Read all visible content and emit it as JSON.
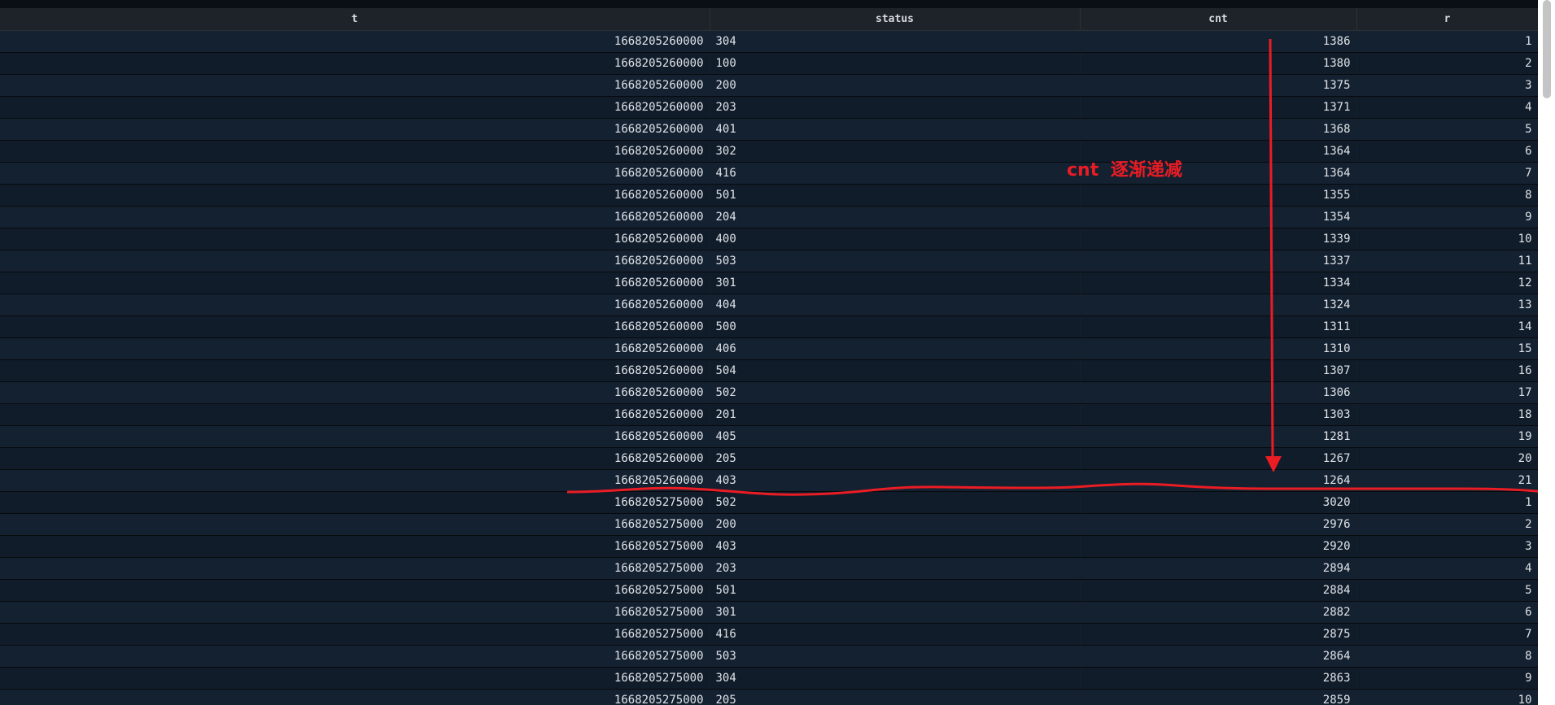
{
  "table": {
    "columns": [
      "t",
      "status",
      "cnt",
      "r"
    ],
    "rows": [
      [
        "1668205260000",
        "304",
        "1386",
        "1"
      ],
      [
        "1668205260000",
        "100",
        "1380",
        "2"
      ],
      [
        "1668205260000",
        "200",
        "1375",
        "3"
      ],
      [
        "1668205260000",
        "203",
        "1371",
        "4"
      ],
      [
        "1668205260000",
        "401",
        "1368",
        "5"
      ],
      [
        "1668205260000",
        "302",
        "1364",
        "6"
      ],
      [
        "1668205260000",
        "416",
        "1364",
        "7"
      ],
      [
        "1668205260000",
        "501",
        "1355",
        "8"
      ],
      [
        "1668205260000",
        "204",
        "1354",
        "9"
      ],
      [
        "1668205260000",
        "400",
        "1339",
        "10"
      ],
      [
        "1668205260000",
        "503",
        "1337",
        "11"
      ],
      [
        "1668205260000",
        "301",
        "1334",
        "12"
      ],
      [
        "1668205260000",
        "404",
        "1324",
        "13"
      ],
      [
        "1668205260000",
        "500",
        "1311",
        "14"
      ],
      [
        "1668205260000",
        "406",
        "1310",
        "15"
      ],
      [
        "1668205260000",
        "504",
        "1307",
        "16"
      ],
      [
        "1668205260000",
        "502",
        "1306",
        "17"
      ],
      [
        "1668205260000",
        "201",
        "1303",
        "18"
      ],
      [
        "1668205260000",
        "405",
        "1281",
        "19"
      ],
      [
        "1668205260000",
        "205",
        "1267",
        "20"
      ],
      [
        "1668205260000",
        "403",
        "1264",
        "21"
      ],
      [
        "1668205275000",
        "502",
        "3020",
        "1"
      ],
      [
        "1668205275000",
        "200",
        "2976",
        "2"
      ],
      [
        "1668205275000",
        "403",
        "2920",
        "3"
      ],
      [
        "1668205275000",
        "203",
        "2894",
        "4"
      ],
      [
        "1668205275000",
        "501",
        "2884",
        "5"
      ],
      [
        "1668205275000",
        "301",
        "2882",
        "6"
      ],
      [
        "1668205275000",
        "416",
        "2875",
        "7"
      ],
      [
        "1668205275000",
        "503",
        "2864",
        "8"
      ],
      [
        "1668205275000",
        "304",
        "2863",
        "9"
      ],
      [
        "1668205275000",
        "205",
        "2859",
        "10"
      ]
    ]
  },
  "annotation": {
    "label_prefix": "cnt",
    "label_text": "逐渐递减",
    "color": "#ea1c24",
    "icons": [
      "down-arrow",
      "separator-line"
    ]
  },
  "scrollbar": {
    "position_fraction": 0.0,
    "visible_fraction": 0.14
  },
  "colors": {
    "background": "#0a0f16",
    "header_bg": "#1e2329",
    "row_odd": "#142131",
    "row_even": "#111c2a",
    "text": "#dfe3e8",
    "annotation": "#ea1c24"
  }
}
